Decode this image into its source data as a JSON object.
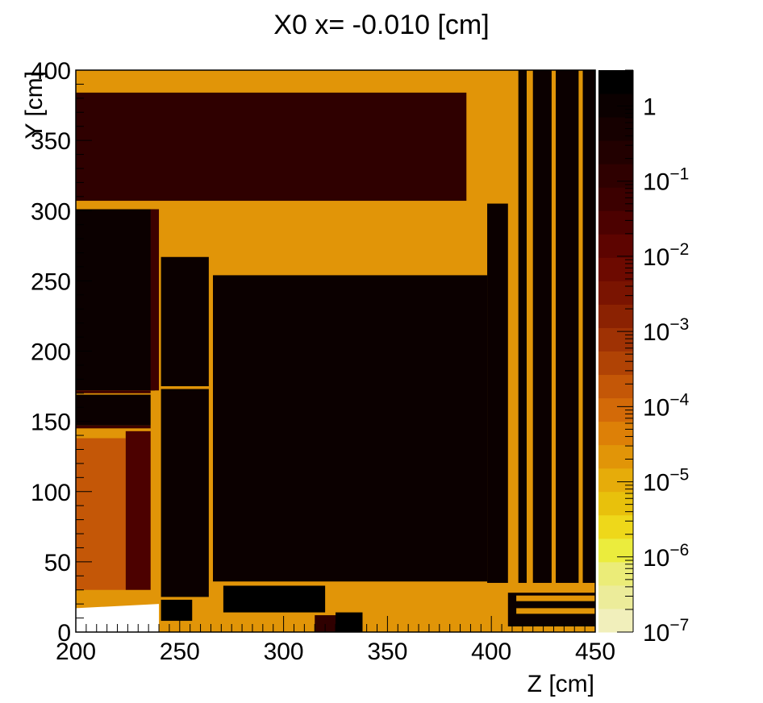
{
  "chart_data": {
    "type": "heatmap",
    "title": "X0 x= -0.010 [cm]",
    "xlabel": "Z [cm]",
    "ylabel": "Y [cm]",
    "xlim": [
      200,
      450
    ],
    "ylim": [
      0,
      400
    ],
    "x_ticks": [
      "200",
      "250",
      "300",
      "350",
      "400",
      "450"
    ],
    "y_ticks": [
      "0",
      "50",
      "100",
      "150",
      "200",
      "250",
      "300",
      "350",
      "400"
    ],
    "colorbar": {
      "scale": "log",
      "min": 1e-07,
      "max": 3,
      "labels": [
        {
          "base": "1",
          "exp": "",
          "value": 1
        },
        {
          "base": "10",
          "exp": "−1",
          "value": 0.1
        },
        {
          "base": "10",
          "exp": "−2",
          "value": 0.01
        },
        {
          "base": "10",
          "exp": "−3",
          "value": 0.001
        },
        {
          "base": "10",
          "exp": "−4",
          "value": 0.0001
        },
        {
          "base": "10",
          "exp": "−5",
          "value": 1e-05
        },
        {
          "base": "10",
          "exp": "−6",
          "value": 1e-06
        },
        {
          "base": "10",
          "exp": "−7",
          "value": 1e-07
        }
      ],
      "palette": [
        "#f1efbb",
        "#ecec9a",
        "#ebec78",
        "#ebec3d",
        "#eed81a",
        "#e8c10c",
        "#e6ac0a",
        "#e19508",
        "#dd8007",
        "#d36a08",
        "#c45707",
        "#b04305",
        "#9f3204",
        "#8b2202",
        "#7a1401",
        "#6d0a00",
        "#5d0400",
        "#4c0100",
        "#3c0000",
        "#2f0000",
        "#220000",
        "#160000",
        "#0b0000",
        "#000000"
      ]
    },
    "cells": [
      {
        "z": [
          200,
          450
        ],
        "y": [
          0,
          400
        ],
        "value": 2e-05
      },
      {
        "z": [
          200,
          388
        ],
        "y": [
          307,
          384
        ],
        "value": 0.15
      },
      {
        "z": [
          200,
          238
        ],
        "y": [
          172,
          301
        ],
        "value": 0.8
      },
      {
        "z": [
          236,
          240
        ],
        "y": [
          172,
          301
        ],
        "value": 0.07
      },
      {
        "z": [
          200,
          236
        ],
        "y": [
          147,
          169
        ],
        "value": 0.9
      },
      {
        "z": [
          200,
          236
        ],
        "y": [
          170,
          172
        ],
        "value": 0.07
      },
      {
        "z": [
          200,
          236
        ],
        "y": [
          145,
          147
        ],
        "value": 0.07
      },
      {
        "z": [
          200,
          224
        ],
        "y": [
          30,
          138
        ],
        "value": 0.0002
      },
      {
        "z": [
          224,
          236
        ],
        "y": [
          30,
          143
        ],
        "value": 0.04
      },
      {
        "z": [
          241,
          264
        ],
        "y": [
          175,
          267
        ],
        "value": 0.8
      },
      {
        "z": [
          241,
          264
        ],
        "y": [
          25,
          173
        ],
        "value": 0.9
      },
      {
        "z": [
          266,
          398
        ],
        "y": [
          36,
          254
        ],
        "value": 0.9
      },
      {
        "z": [
          241,
          256
        ],
        "y": [
          8,
          23
        ],
        "value": 2
      },
      {
        "z": [
          271,
          320
        ],
        "y": [
          14,
          33
        ],
        "value": 2
      },
      {
        "z": [
          315,
          325
        ],
        "y": [
          0,
          12
        ],
        "value": 0.1
      },
      {
        "z": [
          325,
          338
        ],
        "y": [
          0,
          14
        ],
        "value": 2
      },
      {
        "z": [
          398,
          408
        ],
        "y": [
          35,
          305
        ],
        "value": 0.9
      },
      {
        "z": [
          413,
          417
        ],
        "y": [
          35,
          400
        ],
        "value": 0.9
      },
      {
        "z": [
          420,
          429
        ],
        "y": [
          35,
          400
        ],
        "value": 0.9
      },
      {
        "z": [
          431,
          442
        ],
        "y": [
          35,
          400
        ],
        "value": 0.9
      },
      {
        "z": [
          444,
          450
        ],
        "y": [
          35,
          400
        ],
        "value": 0.9
      },
      {
        "z": [
          408,
          450
        ],
        "y": [
          4,
          28
        ],
        "value": 0.9
      },
      {
        "z": [
          412,
          450
        ],
        "y": [
          22,
          26
        ],
        "value": 2e-05
      },
      {
        "z": [
          412,
          450
        ],
        "y": [
          13,
          17
        ],
        "value": 2e-05
      }
    ]
  }
}
